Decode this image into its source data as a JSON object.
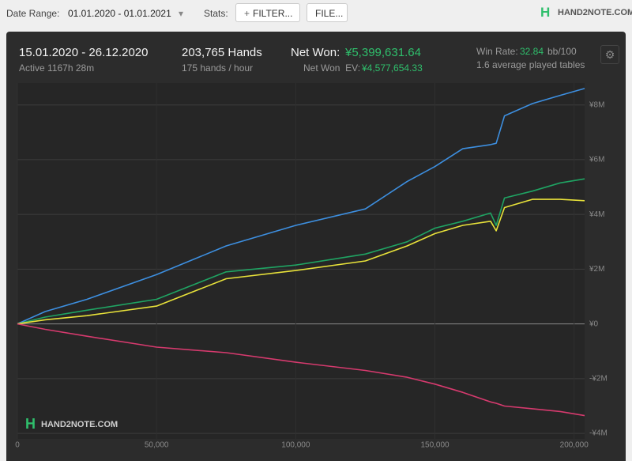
{
  "toolbar": {
    "date_range_label": "Date Range:",
    "date_range": "01.01.2020 - 01.01.2021",
    "stats_label": "Stats:",
    "filter_button": "FILTER...",
    "file_button": "FILE...",
    "logo": "HAND2NOTE.COM"
  },
  "summary": {
    "period": "15.01.2020 - 26.12.2020",
    "active": "Active 1167h 28m",
    "hands": "203,765 Hands",
    "hands_rate": "175 hands / hour",
    "net_won_label": "Net Won:",
    "net_won": "¥5,399,631.64",
    "net_won_ev_label": "Net Won  EV:",
    "net_won_ev": "¥4,577,654.33",
    "win_rate_label": "Win Rate:",
    "win_rate": "32.84",
    "win_rate_unit": "bb/100",
    "tables": "1.6 average played tables"
  },
  "chart_data": {
    "type": "line",
    "watermark": "HAND2NOTE.COM",
    "x": [
      0,
      10000,
      25000,
      50000,
      75000,
      100000,
      125000,
      140000,
      150000,
      160000,
      170000,
      172000,
      175000,
      185000,
      195000,
      203765
    ],
    "series": [
      {
        "color": "#3d8fe0",
        "values": [
          0,
          450000,
          900000,
          1800000,
          2850000,
          3600000,
          4200000,
          5200000,
          5750000,
          6400000,
          6550000,
          6600000,
          7600000,
          8050000,
          8350000,
          8600000
        ]
      },
      {
        "color": "#1fa463",
        "values": [
          0,
          250000,
          500000,
          900000,
          1900000,
          2150000,
          2550000,
          3000000,
          3500000,
          3750000,
          4050000,
          3600000,
          4600000,
          4850000,
          5150000,
          5300000
        ]
      },
      {
        "color": "#e8e23a",
        "values": [
          0,
          150000,
          300000,
          650000,
          1650000,
          1950000,
          2300000,
          2850000,
          3300000,
          3600000,
          3750000,
          3400000,
          4250000,
          4550000,
          4550000,
          4500000
        ]
      },
      {
        "color": "#d63a6e",
        "values": [
          0,
          -200000,
          -450000,
          -850000,
          -1050000,
          -1400000,
          -1700000,
          -1950000,
          -2200000,
          -2500000,
          -2850000,
          -2900000,
          -3000000,
          -3100000,
          -3200000,
          -3350000
        ]
      }
    ],
    "xlim": [
      0,
      203765
    ],
    "ylim": [
      -4200000,
      8800000
    ],
    "xticks": [
      0,
      {
        "value": 50000,
        "label": "50,000"
      },
      {
        "value": 100000,
        "label": "100,000"
      },
      {
        "value": 150000,
        "label": "150,000"
      },
      {
        "value": 200000,
        "label": "200,000"
      }
    ],
    "yticks": [
      {
        "value": -4000000,
        "label": "-¥4M"
      },
      {
        "value": -2000000,
        "label": "-¥2M"
      },
      {
        "value": 0,
        "label": "¥0"
      },
      {
        "value": 2000000,
        "label": "¥2M"
      },
      {
        "value": 4000000,
        "label": "¥4M"
      },
      {
        "value": 6000000,
        "label": "¥6M"
      },
      {
        "value": 8000000,
        "label": "¥8M"
      }
    ],
    "grid": true
  }
}
